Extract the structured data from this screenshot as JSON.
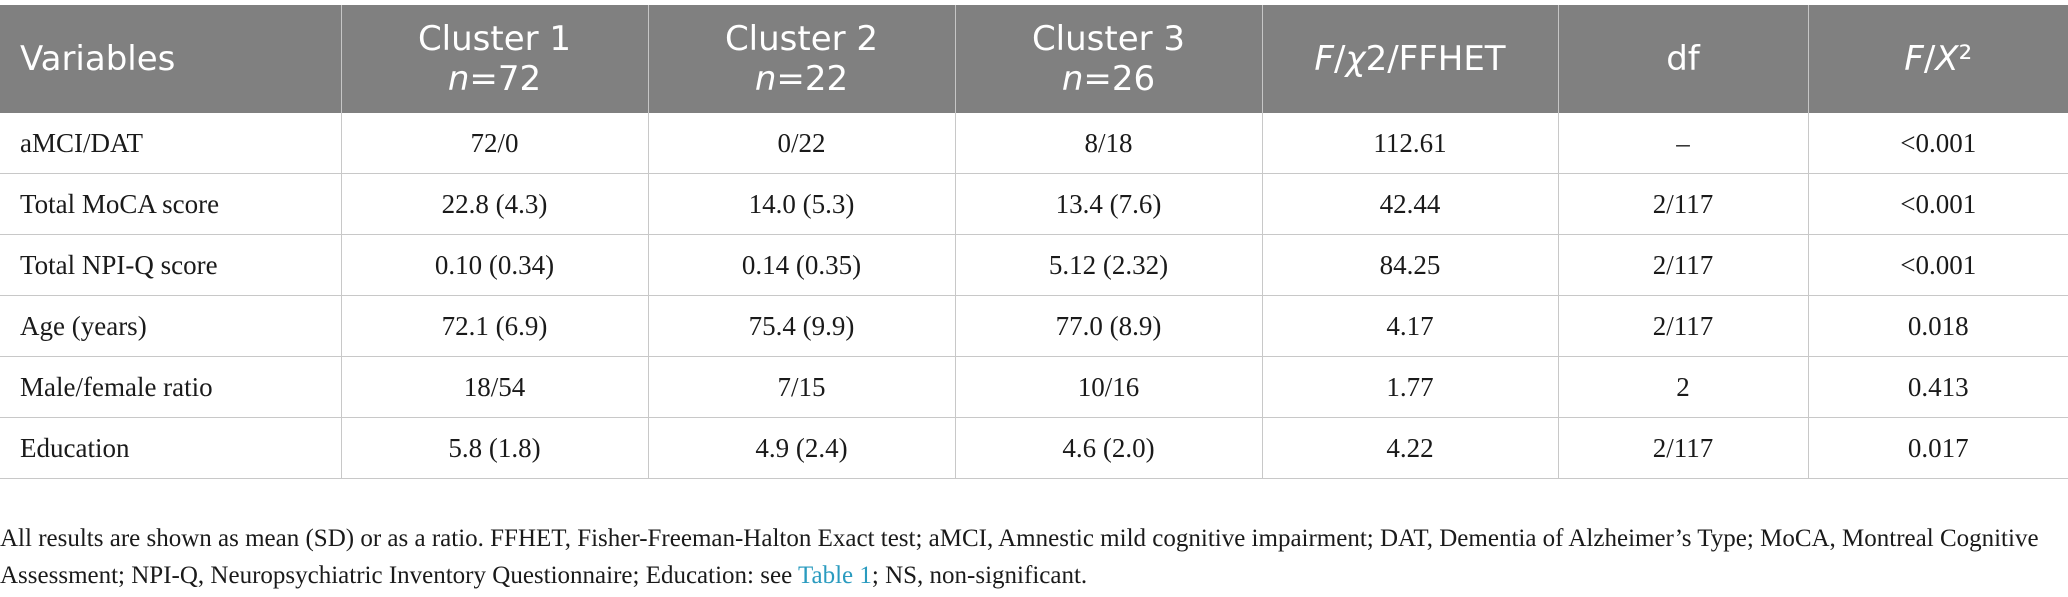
{
  "table": {
    "headers": [
      {
        "parts": [
          [
            "Variables"
          ]
        ]
      },
      {
        "parts": [
          [
            "Cluster 1"
          ],
          [
            [
              "n",
              true
            ],
            [
              "=72",
              false
            ]
          ]
        ]
      },
      {
        "parts": [
          [
            "Cluster 2"
          ],
          [
            [
              "n",
              true
            ],
            [
              "=22",
              false
            ]
          ]
        ]
      },
      {
        "parts": [
          [
            "Cluster 3"
          ],
          [
            [
              "n",
              true
            ],
            [
              "=26",
              false
            ]
          ]
        ]
      },
      {
        "parts": [
          [
            [
              "F",
              true
            ],
            [
              "/",
              false
            ],
            [
              "χ",
              true
            ],
            [
              "2/FFHET",
              false
            ]
          ]
        ]
      },
      {
        "parts": [
          [
            "df"
          ]
        ]
      },
      {
        "parts": [
          [
            [
              "F",
              true
            ],
            [
              "/",
              false
            ],
            [
              "X",
              true
            ],
            [
              "²",
              false
            ]
          ]
        ]
      }
    ],
    "rows": [
      [
        "aMCI/DAT",
        "72/0",
        "0/22",
        "8/18",
        "112.61",
        "–",
        "<0.001"
      ],
      [
        "Total MoCA score",
        "22.8 (4.3)",
        "14.0 (5.3)",
        "13.4 (7.6)",
        "42.44",
        "2/117",
        "<0.001"
      ],
      [
        "Total NPI-Q score",
        "0.10 (0.34)",
        "0.14 (0.35)",
        "5.12 (2.32)",
        "84.25",
        "2/117",
        "<0.001"
      ],
      [
        "Age (years)",
        "72.1 (6.9)",
        "75.4 (9.9)",
        "77.0 (8.9)",
        "4.17",
        "2/117",
        "0.018"
      ],
      [
        "Male/female ratio",
        "18/54",
        "7/15",
        "10/16",
        "1.77",
        "2",
        "0.413"
      ],
      [
        "Education",
        "5.8 (1.8)",
        "4.9 (2.4)",
        "4.6 (2.0)",
        "4.22",
        "2/117",
        "0.017"
      ]
    ]
  },
  "footnote": {
    "text_before": "All results are shown as mean (SD) or as a ratio. FFHET, Fisher-Freeman-Halton Exact test; aMCI, Amnestic mild cognitive impairment; DAT, Dementia of Alzheimer’s Type; MoCA, Montreal Cognitive Assessment; NPI-Q, Neuropsychiatric Inventory Questionnaire; Education: see ",
    "link_text": "Table 1",
    "text_after": "; NS, non-significant."
  },
  "colors": {
    "header_bg": "#808080",
    "header_text": "#ffffff",
    "link": "#2a9bbf"
  }
}
